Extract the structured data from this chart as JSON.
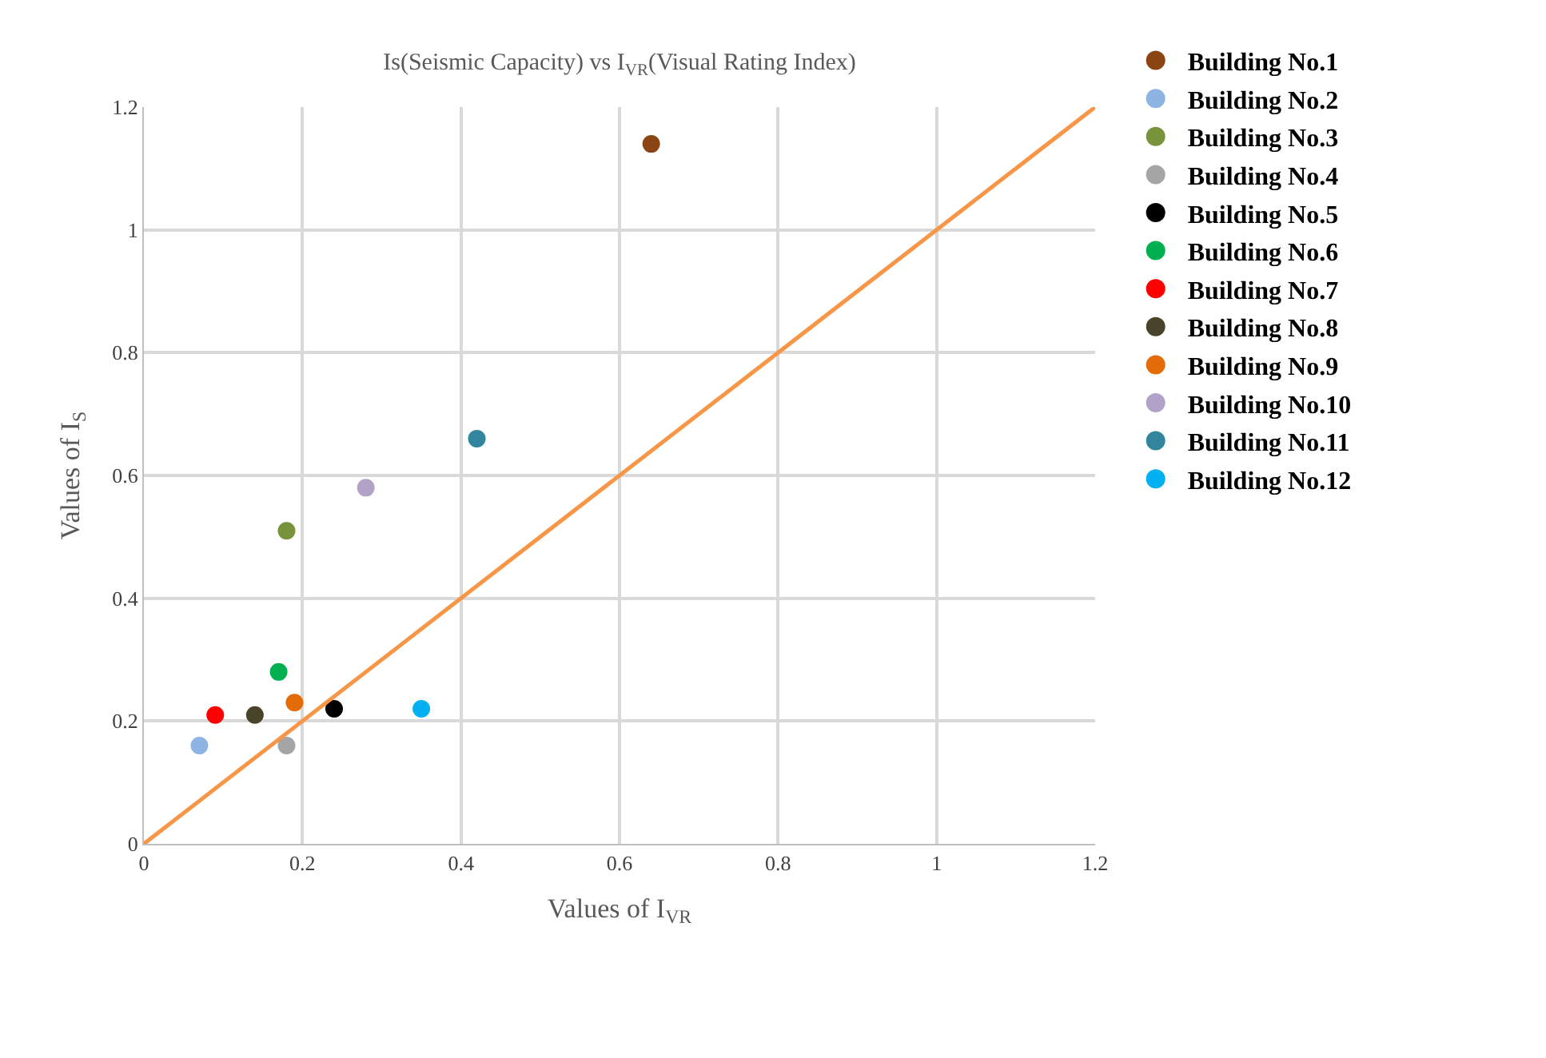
{
  "chart_data": {
    "type": "scatter",
    "title": "Is(Seismic Capacity) vs I$_{VR}$(Visual Rating Index)",
    "xlabel": "Values of I$_{VR}$",
    "ylabel": "Values of I$_{S}$",
    "xlim": [
      0,
      1.2
    ],
    "ylim": [
      0,
      1.2
    ],
    "xticks": [
      0,
      0.2,
      0.4,
      0.6,
      0.8,
      1,
      1.2
    ],
    "yticks": [
      0,
      0.2,
      0.4,
      0.6,
      0.8,
      1,
      1.2
    ],
    "grid": true,
    "legend": "right",
    "marker": "circle",
    "series": [
      {
        "name": "Building No.1",
        "color": "#8b4513",
        "x": [
          0.64
        ],
        "values": [
          1.14
        ]
      },
      {
        "name": "Building No.2",
        "color": "#8eb4e3",
        "x": [
          0.07
        ],
        "values": [
          0.16
        ]
      },
      {
        "name": "Building No.3",
        "color": "#77933c",
        "x": [
          0.18
        ],
        "values": [
          0.51
        ]
      },
      {
        "name": "Building No.4",
        "color": "#a5a5a5",
        "x": [
          0.18
        ],
        "values": [
          0.16
        ]
      },
      {
        "name": "Building No.5",
        "color": "#000000",
        "x": [
          0.24
        ],
        "values": [
          0.22
        ]
      },
      {
        "name": "Building No.6",
        "color": "#00b050",
        "x": [
          0.17
        ],
        "values": [
          0.28
        ]
      },
      {
        "name": "Building No.7",
        "color": "#ff0000",
        "x": [
          0.09
        ],
        "values": [
          0.21
        ]
      },
      {
        "name": "Building No.8",
        "color": "#494429",
        "x": [
          0.14
        ],
        "values": [
          0.21
        ]
      },
      {
        "name": "Building No.9",
        "color": "#e36c09",
        "x": [
          0.19
        ],
        "values": [
          0.23
        ]
      },
      {
        "name": "Building No.10",
        "color": "#b3a2c7",
        "x": [
          0.28
        ],
        "values": [
          0.58
        ]
      },
      {
        "name": "Building No.11",
        "color": "#31859c",
        "x": [
          0.42
        ],
        "values": [
          0.66
        ]
      },
      {
        "name": "Building No.12",
        "color": "#00b0f0",
        "x": [
          0.35
        ],
        "values": [
          0.22
        ]
      },
      {
        "type": "line",
        "color": "#f79646",
        "x": [
          0,
          1.2
        ],
        "values": [
          0,
          1.2
        ],
        "marker": "none",
        "line_style": "solid"
      }
    ]
  }
}
